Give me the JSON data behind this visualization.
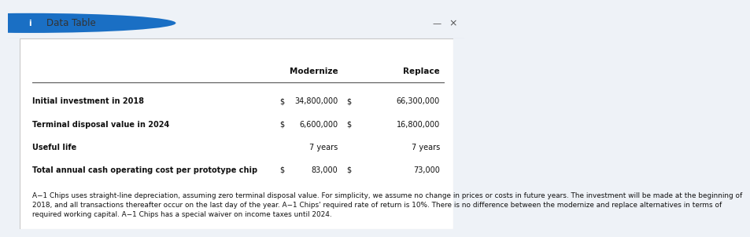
{
  "title": "Data Table",
  "title_bar_bg": "#dce9f5",
  "title_color": "#1a6fc4",
  "col_headers": [
    "Modernize",
    "Replace"
  ],
  "rows": [
    {
      "label": "Initial investment in 2018",
      "dollar_sign": "$",
      "modernize": "34,800,000",
      "modernize_dollar": "$",
      "replace": "66,300,000"
    },
    {
      "label": "Terminal disposal value in 2024",
      "dollar_sign": "$",
      "modernize": "6,600,000",
      "modernize_dollar": "$",
      "replace": "16,800,000"
    },
    {
      "label": "Useful life",
      "dollar_sign": "",
      "modernize": "7 years",
      "modernize_dollar": "",
      "replace": "7 years"
    },
    {
      "label": "Total annual cash operating cost per prototype chip",
      "dollar_sign": "$",
      "modernize": "83,000",
      "modernize_dollar": "$",
      "replace": "73,000"
    }
  ],
  "footnote": "A−1 Chips uses straight-line depreciation, assuming zero terminal disposal value. For simplicity, we assume no change in prices or costs in future years. The investment will be made at the beginning of\n2018, and all transactions thereafter occur on the last day of the year. A−1 Chips' required rate of return is 10%. There is no difference between the modernize and replace alternatives in terms of\nrequired working capital. A−1 Chips has a special waiver on income taxes until 2024.",
  "outer_bg": "#eef2f7",
  "inner_bg": "#ffffff",
  "border_color": "#c8c8c8",
  "line_color": "#444444",
  "label_fontsize": 7.0,
  "header_fontsize": 7.5,
  "footnote_fontsize": 6.4,
  "title_fontsize": 8.5
}
